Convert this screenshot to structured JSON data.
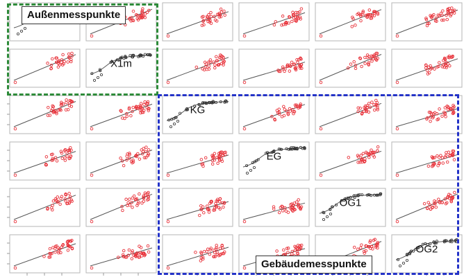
{
  "chart_data": {
    "type": "scatter",
    "layout": "scatterplot-matrix",
    "variables": [
      "",
      "X1m",
      "KG",
      "EG",
      "OG1",
      "OG2"
    ],
    "diagonal_labels": [
      "",
      "X1m",
      "KG",
      "EG",
      "OG1",
      "OG2"
    ],
    "offdiag_point_color": "#e8323a",
    "diagonal_point_color": "#333333",
    "line_color": "#555555",
    "grid": false,
    "cells": [
      {
        "row": 0,
        "col": 0,
        "kind": "diagonal"
      },
      {
        "row": 0,
        "col": 1,
        "kind": "scatter"
      },
      {
        "row": 0,
        "col": 2,
        "kind": "scatter"
      },
      {
        "row": 0,
        "col": 3,
        "kind": "scatter"
      },
      {
        "row": 0,
        "col": 4,
        "kind": "scatter"
      },
      {
        "row": 0,
        "col": 5,
        "kind": "scatter"
      }
    ]
  },
  "groups": {
    "outdoor": {
      "label": "Außenmesspunkte",
      "color": "#2e8b3a"
    },
    "building": {
      "label": "Gebäudemesspunkte",
      "color": "#2433c8"
    }
  }
}
